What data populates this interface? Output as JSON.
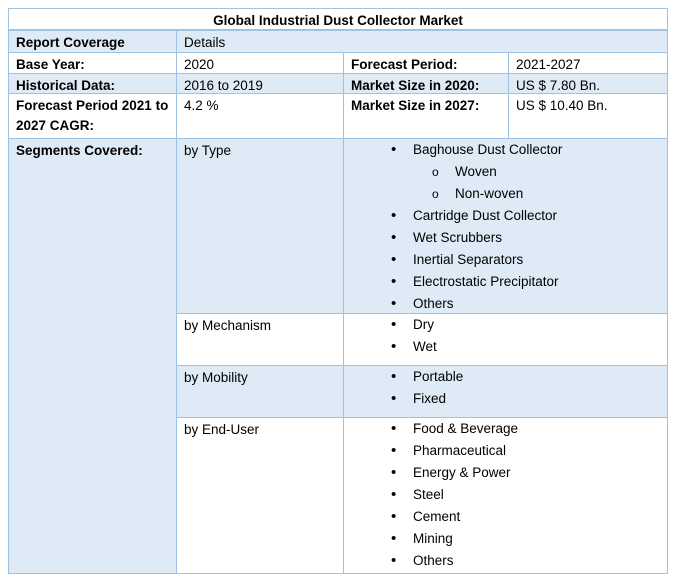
{
  "title": "Global Industrial Dust Collector Market",
  "header": {
    "label": "Report Coverage",
    "value": "Details"
  },
  "rows": [
    {
      "label": "Base Year:",
      "value": "2020",
      "label2": "Forecast Period:",
      "value2": "2021-2027"
    },
    {
      "label": "Historical Data:",
      "value": "2016 to 2019",
      "label2": "Market Size in 2020:",
      "value2": "US $ 7.80 Bn."
    },
    {
      "label": "Forecast Period 2021 to 2027 CAGR:",
      "value": "4.2 %",
      "label2": "Market Size in 2027:",
      "value2": "US $ 10.40 Bn."
    }
  ],
  "segments": {
    "label": "Segments Covered:",
    "groups": [
      {
        "name": "by Type",
        "items": [
          {
            "text": "Baghouse Dust Collector",
            "sub": [
              "Woven",
              "Non-woven"
            ]
          },
          {
            "text": "Cartridge Dust Collector"
          },
          {
            "text": "Wet Scrubbers"
          },
          {
            "text": "Inertial Separators"
          },
          {
            "text": "Electrostatic Precipitator"
          },
          {
            "text": "Others"
          }
        ]
      },
      {
        "name": "by Mechanism",
        "items": [
          {
            "text": "Dry"
          },
          {
            "text": "Wet"
          }
        ]
      },
      {
        "name": "by Mobility",
        "items": [
          {
            "text": "Portable"
          },
          {
            "text": "Fixed"
          }
        ]
      },
      {
        "name": "by End-User",
        "items": [
          {
            "text": "Food & Beverage"
          },
          {
            "text": "Pharmaceutical"
          },
          {
            "text": "Energy & Power"
          },
          {
            "text": "Steel"
          },
          {
            "text": "Cement"
          },
          {
            "text": "Mining"
          },
          {
            "text": "Others"
          }
        ]
      }
    ]
  },
  "colors": {
    "shade": "#DEEAF6",
    "border": "#9CC2E5"
  }
}
